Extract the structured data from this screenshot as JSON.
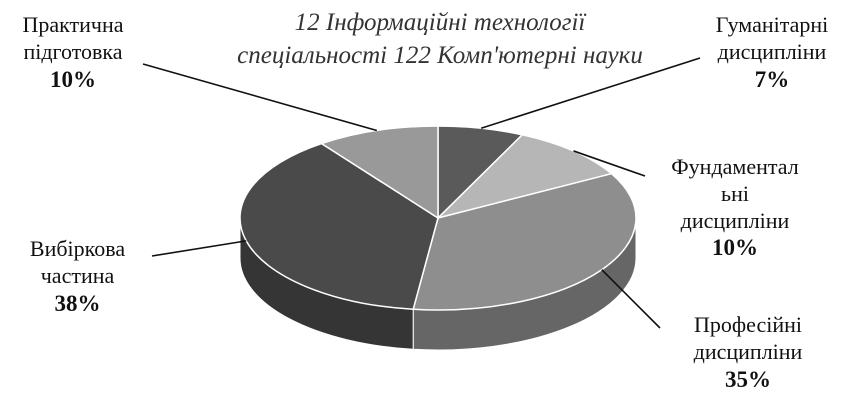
{
  "chart_data": {
    "type": "pie",
    "title_lines": [
      "12 Інформаційні технології",
      "спеціальності 122 Комп'ютерні науки"
    ],
    "slices": [
      {
        "label_lines": [
          "Гуманітарні",
          "дисципліни"
        ],
        "value": 7,
        "display": "7%",
        "color": "#5a5a5a"
      },
      {
        "label_lines": [
          "Фундаментал",
          "ьні",
          "дисципліни"
        ],
        "value": 10,
        "display": "10%",
        "color": "#b6b6b6"
      },
      {
        "label_lines": [
          "Професійні",
          "дисципліни"
        ],
        "value": 35,
        "display": "35%",
        "color": "#8e8e8e"
      },
      {
        "label_lines": [
          "Вибіркова",
          "частина"
        ],
        "value": 38,
        "display": "38%",
        "color": "#4a4a4a"
      },
      {
        "label_lines": [
          "Практична",
          "підготовка"
        ],
        "value": 10,
        "display": "10%",
        "color": "#999999"
      }
    ],
    "style": "3d-pie",
    "legend": "none"
  }
}
